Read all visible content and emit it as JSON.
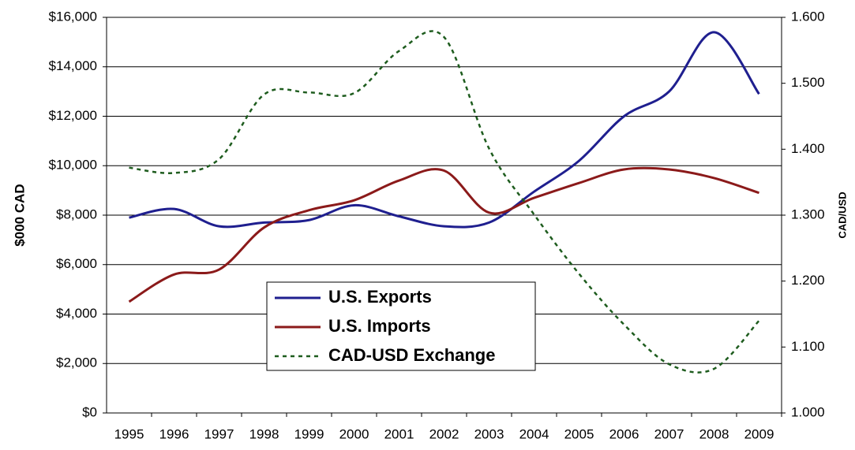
{
  "chart_data": {
    "type": "line",
    "y_label": "$000 CAD",
    "y2_label": "CAD/USD",
    "categories": [
      "1995",
      "1996",
      "1997",
      "1998",
      "1999",
      "2000",
      "2001",
      "2002",
      "2003",
      "2004",
      "2005",
      "2006",
      "2007",
      "2008",
      "2009"
    ],
    "series": [
      {
        "name": "U.S. Exports",
        "color": "#1f1f8f",
        "values": [
          7900,
          8250,
          7550,
          7700,
          7800,
          8400,
          7950,
          7550,
          7700,
          8950,
          10200,
          12000,
          13000,
          15400,
          12900
        ]
      },
      {
        "name": "U.S. Imports",
        "color": "#8b1a1a",
        "values": [
          4500,
          5600,
          5800,
          7500,
          8200,
          8600,
          9400,
          9800,
          8100,
          8700,
          9300,
          9850,
          9850,
          9500,
          8900
        ]
      },
      {
        "name": "CAD-USD Exchange",
        "color": "#1e5c1e",
        "axis": "y2",
        "dashed": true,
        "values": [
          1.372,
          1.364,
          1.385,
          1.483,
          1.486,
          1.485,
          1.549,
          1.57,
          1.401,
          1.301,
          1.211,
          1.134,
          1.074,
          1.067,
          1.14
        ]
      }
    ],
    "ylim": [
      0,
      16000
    ],
    "yticks": [
      {
        "value": 0,
        "label": "$0"
      },
      {
        "value": 2000,
        "label": "$2,000"
      },
      {
        "value": 4000,
        "label": "$4,000"
      },
      {
        "value": 6000,
        "label": "$6,000"
      },
      {
        "value": 8000,
        "label": "$8,000"
      },
      {
        "value": 10000,
        "label": "$10,000"
      },
      {
        "value": 12000,
        "label": "$12,000"
      },
      {
        "value": 14000,
        "label": "$14,000"
      },
      {
        "value": 16000,
        "label": "$16,000"
      }
    ],
    "y2lim": [
      1.0,
      1.6
    ],
    "y2ticks": [
      {
        "value": 1.0,
        "label": "1.000"
      },
      {
        "value": 1.1,
        "label": "1.100"
      },
      {
        "value": 1.2,
        "label": "1.200"
      },
      {
        "value": 1.3,
        "label": "1.300"
      },
      {
        "value": 1.4,
        "label": "1.400"
      },
      {
        "value": 1.5,
        "label": "1.500"
      },
      {
        "value": 1.6,
        "label": "1.600"
      }
    ],
    "grid": true
  }
}
